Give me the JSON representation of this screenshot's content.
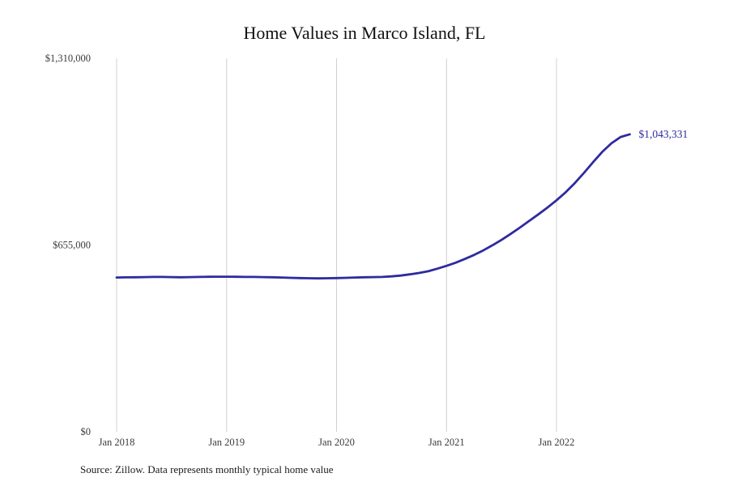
{
  "title": "Home Values in Marco Island, FL",
  "source_note": "Source: Zillow. Data represents monthly typical home value",
  "colors": {
    "line": "#2f2b9e",
    "grid": "#d0d0d0",
    "tick_text": "#3a3a3a",
    "title_text": "#111111",
    "annotation_text": "#2f2b9e"
  },
  "chart_data": {
    "type": "line",
    "title": "Home Values in Marco Island, FL",
    "xlabel": "",
    "ylabel": "",
    "ylim": [
      0,
      1310000
    ],
    "grid": "vertical-only",
    "legend": "none",
    "x": [
      "2018-01",
      "2018-02",
      "2018-03",
      "2018-04",
      "2018-05",
      "2018-06",
      "2018-07",
      "2018-08",
      "2018-09",
      "2018-10",
      "2018-11",
      "2018-12",
      "2019-01",
      "2019-02",
      "2019-03",
      "2019-04",
      "2019-05",
      "2019-06",
      "2019-07",
      "2019-08",
      "2019-09",
      "2019-10",
      "2019-11",
      "2019-12",
      "2020-01",
      "2020-02",
      "2020-03",
      "2020-04",
      "2020-05",
      "2020-06",
      "2020-07",
      "2020-08",
      "2020-09",
      "2020-10",
      "2020-11",
      "2020-12",
      "2021-01",
      "2021-02",
      "2021-03",
      "2021-04",
      "2021-05",
      "2021-06",
      "2021-07",
      "2021-08",
      "2021-09",
      "2021-10",
      "2021-11",
      "2021-12",
      "2022-01",
      "2022-02",
      "2022-03",
      "2022-04",
      "2022-05",
      "2022-06",
      "2022-07",
      "2022-08",
      "2022-09"
    ],
    "values": [
      541000,
      541500,
      542000,
      542500,
      543000,
      543000,
      542500,
      542000,
      542500,
      543000,
      543500,
      544000,
      544000,
      543500,
      543000,
      543000,
      542500,
      542000,
      541000,
      540000,
      539000,
      538500,
      538000,
      538500,
      539000,
      540000,
      541000,
      542000,
      542500,
      543000,
      545000,
      548000,
      552000,
      557000,
      563000,
      572000,
      582000,
      593000,
      606000,
      620000,
      636000,
      654000,
      673000,
      694000,
      716000,
      739000,
      762000,
      786000,
      812000,
      840000,
      872000,
      908000,
      946000,
      982000,
      1012000,
      1034000,
      1043331
    ],
    "yticks": [
      {
        "value": 0,
        "label": "$0"
      },
      {
        "value": 655000,
        "label": "$655,000"
      },
      {
        "value": 1310000,
        "label": "$1,310,000"
      }
    ],
    "xticks": [
      {
        "month": "2018-01",
        "label": "Jan 2018"
      },
      {
        "month": "2019-01",
        "label": "Jan 2019"
      },
      {
        "month": "2020-01",
        "label": "Jan 2020"
      },
      {
        "month": "2021-01",
        "label": "Jan 2021"
      },
      {
        "month": "2022-01",
        "label": "Jan 2022"
      }
    ],
    "annotation": {
      "label": "$1,043,331",
      "value": 1043331
    }
  }
}
